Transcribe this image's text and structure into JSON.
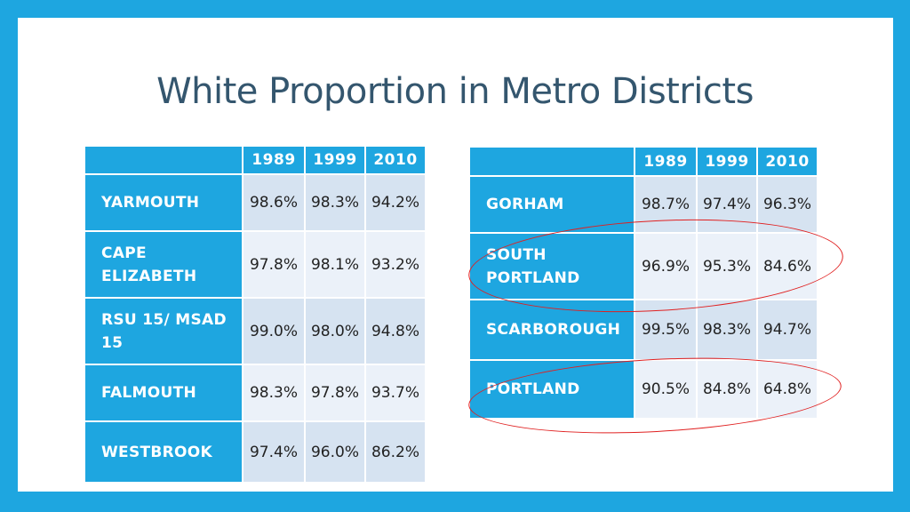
{
  "title": "White Proportion in Metro Districts",
  "left_table": {
    "years": [
      "1989",
      "1999",
      "2010"
    ],
    "rows": [
      {
        "name": "YARMOUTH",
        "values": [
          "98.6%",
          "98.3%",
          "94.2%"
        ]
      },
      {
        "name": "CAPE ELIZABETH",
        "values": [
          "97.8%",
          "98.1%",
          "93.2%"
        ]
      },
      {
        "name": "RSU 15/ MSAD 15",
        "values": [
          "99.0%",
          "98.0%",
          "94.8%"
        ]
      },
      {
        "name": "FALMOUTH",
        "values": [
          "98.3%",
          "97.8%",
          "93.7%"
        ]
      },
      {
        "name": "WESTBROOK",
        "values": [
          "97.4%",
          "96.0%",
          "86.2%"
        ]
      }
    ]
  },
  "right_table": {
    "years": [
      "1989",
      "1999",
      "2010"
    ],
    "rows": [
      {
        "name": "GORHAM",
        "values": [
          "98.7%",
          "97.4%",
          "96.3%"
        ]
      },
      {
        "name": "SOUTH PORTLAND",
        "values": [
          "96.9%",
          "95.3%",
          "84.6%"
        ]
      },
      {
        "name": "SCARBOROUGH",
        "values": [
          "99.5%",
          "98.3%",
          "94.7%"
        ]
      },
      {
        "name": "PORTLAND",
        "values": [
          "90.5%",
          "84.8%",
          "64.8%"
        ]
      }
    ]
  },
  "colors": {
    "border": "#1ea6e0",
    "header": "#1ea6e0",
    "title": "#34566e",
    "highlight": "#e02020"
  }
}
